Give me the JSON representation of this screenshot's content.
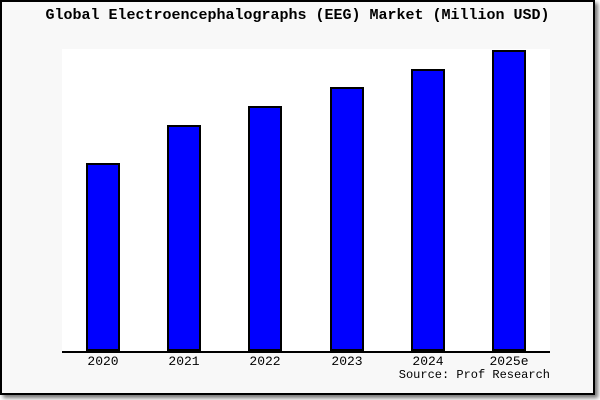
{
  "title": "Global Electroencephalographs (EEG) Market (Million USD)",
  "source": "Source: Prof Research",
  "colors": {
    "bar_fill": "#0000ff",
    "bar_border": "#000000",
    "figure_bg": "#f8f8f8",
    "plot_bg": "#ffffff",
    "axis": "#000000",
    "frame_border": "#000000",
    "title_text": "#000000"
  },
  "chart_data": {
    "type": "bar",
    "title": "Global Electroencephalographs (EEG) Market (Million USD)",
    "categories": [
      "2020",
      "2021",
      "2022",
      "2023",
      "2024",
      "2025e"
    ],
    "values": [
      62.5,
      75.1,
      81.4,
      87.6,
      93.7,
      100
    ],
    "value_note": "No y-axis scale or data labels are shown in the chart; values are relative bar heights indexed to 2025e = 100",
    "xlabel": "",
    "ylabel": "",
    "ylim": [
      0,
      100.3
    ],
    "grid": false,
    "legend": null,
    "y_axis_visible": false,
    "x_axis_visible": true,
    "annotation": "Source: Prof Research"
  }
}
